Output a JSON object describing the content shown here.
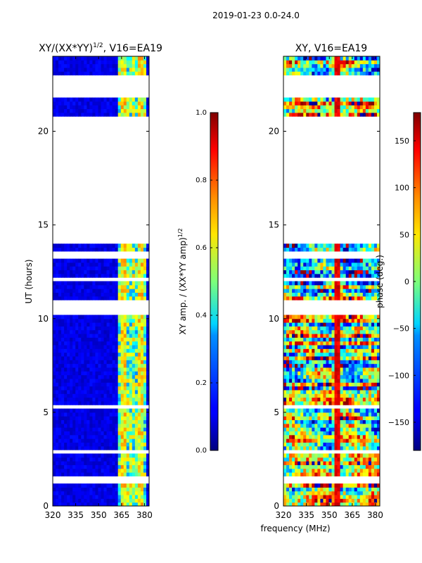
{
  "figure": {
    "suptitle": "2019-01-23 0.0-24.0"
  },
  "chart_data": [
    {
      "type": "heatmap",
      "title_main": "XY/(XX*YY)",
      "title_sup": "1/2",
      "title_tail": ", V16=EA19",
      "xlabel": "",
      "ylabel": "UT (hours)",
      "xlim": [
        320,
        383
      ],
      "ylim": [
        0,
        24
      ],
      "xticks": [
        320,
        335,
        350,
        365,
        380
      ],
      "yticks": [
        0,
        5,
        10,
        15,
        20
      ],
      "colorbar": {
        "label_main": "XY amp. / (XX*YY amp)",
        "label_sup": "1/2",
        "range": [
          0.0,
          1.0
        ],
        "ticks": [
          "0.0",
          "0.2",
          "0.4",
          "0.6",
          "0.8",
          "1.0"
        ],
        "colormap": "jet"
      },
      "data_blocks_hours": [
        [
          0,
          1.3
        ],
        [
          1.6,
          14.0
        ],
        [
          20.7,
          21.7
        ],
        [
          22.9,
          24.0
        ]
      ],
      "flagged_gaps_hours": [
        [
          10.2,
          10.5
        ],
        [
          10.6,
          10.9
        ],
        [
          12.0,
          12.1
        ],
        [
          13.2,
          13.5
        ],
        [
          5.2,
          5.4
        ],
        [
          4.8,
          4.9
        ],
        [
          2.9,
          3.1
        ],
        [
          2.1,
          2.2
        ]
      ],
      "high_signal_band_mhz": [
        361,
        381
      ]
    },
    {
      "type": "heatmap",
      "title_main": "XY, V16=EA19",
      "xlabel": "frequency (MHz)",
      "ylabel": "",
      "xlim": [
        320,
        383
      ],
      "ylim": [
        0,
        24
      ],
      "xticks": [
        320,
        335,
        350,
        365,
        380
      ],
      "yticks": [
        0,
        5,
        10,
        15,
        20
      ],
      "colorbar": {
        "label_main": "phase (deg.)",
        "range": [
          -180,
          180
        ],
        "ticks": [
          "−150",
          "−100",
          "−50",
          "0",
          "50",
          "100",
          "150"
        ],
        "tick_values": [
          -150,
          -100,
          -50,
          0,
          50,
          100,
          150
        ],
        "colormap": "jet"
      },
      "data_blocks_hours": [
        [
          0,
          1.3
        ],
        [
          1.6,
          14.0
        ],
        [
          20.7,
          21.7
        ],
        [
          22.9,
          24.0
        ]
      ],
      "flagged_gaps_hours": [
        [
          10.2,
          10.5
        ],
        [
          10.6,
          10.9
        ],
        [
          12.0,
          12.1
        ],
        [
          13.2,
          13.5
        ],
        [
          5.2,
          5.4
        ],
        [
          4.8,
          4.9
        ],
        [
          2.9,
          3.1
        ],
        [
          2.1,
          2.2
        ]
      ]
    }
  ]
}
